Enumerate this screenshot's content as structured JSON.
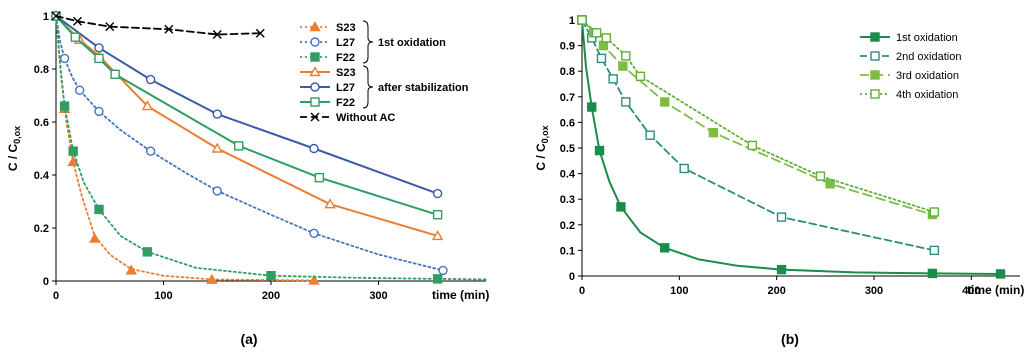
{
  "chart_data": [
    {
      "type": "line",
      "panel_label": "(a)",
      "ylabel_main": "C / C",
      "ylabel_sub": "0,ox",
      "xlabel": "time (min)",
      "xlim": [
        0,
        400
      ],
      "ylim": [
        0,
        1
      ],
      "x_ticks": [
        0,
        100,
        200,
        300
      ],
      "y_ticks": [
        0,
        0.2,
        0.4,
        0.6,
        0.8,
        1
      ],
      "y_tick_labels": [
        "0",
        "0.2",
        "0.4",
        "0.6",
        "0.8",
        "1"
      ],
      "legend_groups": [
        {
          "label": "1st oxidation",
          "first": 0,
          "last": 2
        },
        {
          "label": "after stabilization",
          "first": 3,
          "last": 5
        }
      ],
      "series": [
        {
          "name": "S23",
          "color": "#ED7D31",
          "dash": "dotted",
          "marker": "triangle-filled",
          "points": [
            [
              0,
              1
            ],
            [
              8,
              0.65
            ],
            [
              16,
              0.45
            ],
            [
              36,
              0.16
            ],
            [
              70,
              0.04
            ],
            [
              145,
              0.005
            ],
            [
              240,
              0.002
            ]
          ],
          "curve": [
            [
              0,
              1
            ],
            [
              5,
              0.76
            ],
            [
              10,
              0.59
            ],
            [
              16,
              0.45
            ],
            [
              24,
              0.32
            ],
            [
              36,
              0.17
            ],
            [
              50,
              0.1
            ],
            [
              70,
              0.045
            ],
            [
              100,
              0.02
            ],
            [
              145,
              0.006
            ],
            [
              240,
              0.002
            ]
          ]
        },
        {
          "name": "L27",
          "color": "#4472C4",
          "dash": "dotted",
          "marker": "circle-open",
          "points": [
            [
              0,
              1
            ],
            [
              8,
              0.84
            ],
            [
              22,
              0.72
            ],
            [
              40,
              0.64
            ],
            [
              88,
              0.49
            ],
            [
              150,
              0.34
            ],
            [
              240,
              0.18
            ],
            [
              360,
              0.04
            ]
          ],
          "curve": [
            [
              0,
              1
            ],
            [
              4,
              0.9
            ],
            [
              8,
              0.84
            ],
            [
              15,
              0.77
            ],
            [
              22,
              0.72
            ],
            [
              40,
              0.64
            ],
            [
              60,
              0.57
            ],
            [
              88,
              0.49
            ],
            [
              120,
              0.41
            ],
            [
              150,
              0.34
            ],
            [
              200,
              0.25
            ],
            [
              240,
              0.18
            ],
            [
              300,
              0.1
            ],
            [
              360,
              0.04
            ]
          ]
        },
        {
          "name": "F22",
          "color": "#2E9E63",
          "dash": "dotted",
          "marker": "square-filled",
          "points": [
            [
              0,
              1
            ],
            [
              8,
              0.66
            ],
            [
              16,
              0.49
            ],
            [
              40,
              0.27
            ],
            [
              85,
              0.11
            ],
            [
              200,
              0.02
            ],
            [
              355,
              0.008
            ]
          ],
          "curve": [
            [
              0,
              1
            ],
            [
              4,
              0.81
            ],
            [
              8,
              0.66
            ],
            [
              16,
              0.49
            ],
            [
              26,
              0.37
            ],
            [
              40,
              0.27
            ],
            [
              60,
              0.17
            ],
            [
              85,
              0.11
            ],
            [
              130,
              0.05
            ],
            [
              200,
              0.02
            ],
            [
              280,
              0.012
            ],
            [
              355,
              0.008
            ],
            [
              400,
              0.006
            ]
          ]
        },
        {
          "name": "S23",
          "color": "#ED7D31",
          "dash": "solid",
          "marker": "triangle-open",
          "points": [
            [
              0,
              1
            ],
            [
              22,
              0.91
            ],
            [
              40,
              0.85
            ],
            [
              85,
              0.66
            ],
            [
              150,
              0.5
            ],
            [
              255,
              0.29
            ],
            [
              355,
              0.17
            ]
          ]
        },
        {
          "name": "L27",
          "color": "#3A5BA9",
          "dash": "solid",
          "marker": "circle-open",
          "points": [
            [
              0,
              1
            ],
            [
              40,
              0.88
            ],
            [
              88,
              0.76
            ],
            [
              150,
              0.63
            ],
            [
              240,
              0.5
            ],
            [
              355,
              0.33
            ]
          ]
        },
        {
          "name": "F22",
          "color": "#2E9E63",
          "dash": "solid",
          "marker": "square-open",
          "points": [
            [
              0,
              1
            ],
            [
              18,
              0.92
            ],
            [
              40,
              0.84
            ],
            [
              55,
              0.78
            ],
            [
              170,
              0.51
            ],
            [
              245,
              0.39
            ],
            [
              355,
              0.25
            ]
          ]
        },
        {
          "name": "Without AC",
          "color": "#000000",
          "dash": "dashed",
          "marker": "x",
          "points": [
            [
              0,
              1
            ],
            [
              20,
              0.98
            ],
            [
              50,
              0.96
            ],
            [
              105,
              0.95
            ],
            [
              150,
              0.93
            ],
            [
              190,
              0.935
            ]
          ]
        }
      ]
    },
    {
      "type": "line",
      "panel_label": "(b)",
      "ylabel_main": "C / C",
      "ylabel_sub": "0,ox",
      "xlabel": "time (min)",
      "xlim": [
        0,
        450
      ],
      "ylim": [
        0,
        1
      ],
      "x_ticks": [
        0,
        100,
        200,
        300,
        400
      ],
      "y_ticks": [
        0,
        0.1,
        0.2,
        0.3,
        0.4,
        0.5,
        0.6,
        0.7,
        0.8,
        0.9,
        1
      ],
      "y_tick_labels": [
        "0",
        "0.1",
        "0.2",
        "0.3",
        "0.4",
        "0.5",
        "0.6",
        "0.7",
        "0.8",
        "0.9",
        "1"
      ],
      "series": [
        {
          "name": "1st oxidation",
          "color": "#1A8C4B",
          "dash": "solid",
          "marker": "square-filled",
          "points": [
            [
              0,
              1
            ],
            [
              10,
              0.66
            ],
            [
              18,
              0.49
            ],
            [
              40,
              0.27
            ],
            [
              85,
              0.11
            ],
            [
              205,
              0.025
            ],
            [
              360,
              0.01
            ],
            [
              430,
              0.008
            ]
          ],
          "curve": [
            [
              0,
              1
            ],
            [
              4,
              0.82
            ],
            [
              10,
              0.66
            ],
            [
              18,
              0.49
            ],
            [
              28,
              0.37
            ],
            [
              40,
              0.27
            ],
            [
              60,
              0.17
            ],
            [
              85,
              0.11
            ],
            [
              120,
              0.065
            ],
            [
              160,
              0.04
            ],
            [
              205,
              0.025
            ],
            [
              280,
              0.014
            ],
            [
              360,
              0.01
            ],
            [
              430,
              0.008
            ]
          ]
        },
        {
          "name": "2nd oxidation",
          "color": "#2A8F7A",
          "dash": "dashed",
          "marker": "square-open",
          "points": [
            [
              0,
              1
            ],
            [
              10,
              0.93
            ],
            [
              20,
              0.85
            ],
            [
              32,
              0.77
            ],
            [
              45,
              0.68
            ],
            [
              70,
              0.55
            ],
            [
              105,
              0.42
            ],
            [
              205,
              0.23
            ],
            [
              362,
              0.1
            ]
          ]
        },
        {
          "name": "3rd oxidation",
          "color": "#7CBE43",
          "dash": "longdash",
          "marker": "square-filled",
          "points": [
            [
              0,
              1
            ],
            [
              12,
              0.95
            ],
            [
              22,
              0.9
            ],
            [
              42,
              0.82
            ],
            [
              85,
              0.68
            ],
            [
              135,
              0.56
            ],
            [
              255,
              0.36
            ],
            [
              360,
              0.24
            ]
          ]
        },
        {
          "name": "4th oxidation",
          "color": "#5DAF3A",
          "dash": "dotted",
          "marker": "square-open",
          "points": [
            [
              0,
              1
            ],
            [
              15,
              0.95
            ],
            [
              25,
              0.93
            ],
            [
              45,
              0.86
            ],
            [
              60,
              0.78
            ],
            [
              175,
              0.51
            ],
            [
              245,
              0.39
            ],
            [
              362,
              0.25
            ]
          ]
        }
      ]
    }
  ]
}
